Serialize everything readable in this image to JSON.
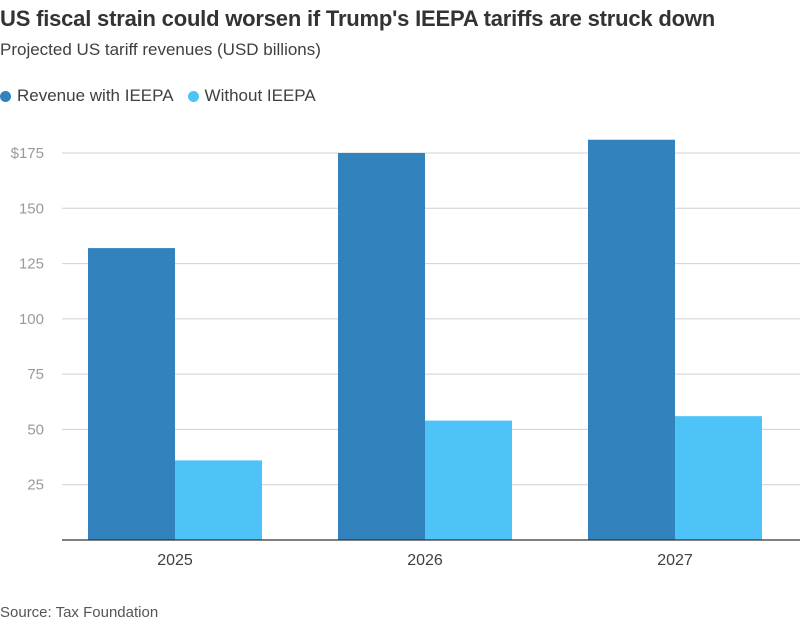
{
  "header": {
    "title": "US fiscal strain could worsen if Trump's IEEPA tariffs are struck down",
    "subtitle": "Projected US tariff revenues (USD billions)"
  },
  "footer": {
    "source": "Source: Tax Foundation"
  },
  "colors": {
    "series_with": "#3182bd",
    "series_without": "#4dc3f7",
    "gridline": "#d0d0d0",
    "axis": "#333333"
  },
  "chart_data": {
    "type": "bar",
    "categories": [
      "2025",
      "2026",
      "2027"
    ],
    "series": [
      {
        "name": "Revenue with IEEPA",
        "values": [
          132,
          175,
          181
        ]
      },
      {
        "name": "Without IEEPA",
        "values": [
          36,
          54,
          56
        ]
      }
    ],
    "yticks": [
      25,
      50,
      75,
      100,
      125,
      150,
      175
    ],
    "ytick_labels": [
      "25",
      "50",
      "75",
      "100",
      "125",
      "150",
      "$175"
    ],
    "ylim": [
      0,
      190
    ],
    "grid": true,
    "legend_position": "top-left"
  }
}
